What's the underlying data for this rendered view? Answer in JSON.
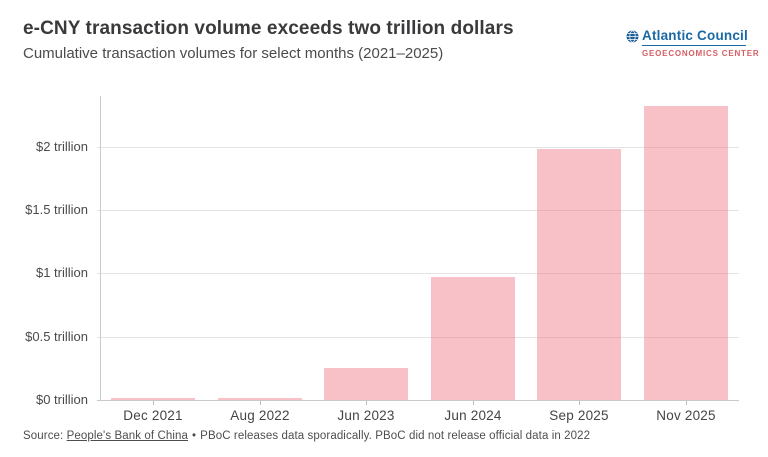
{
  "header": {
    "title": "e-CNY transaction volume exceeds two trillion dollars",
    "subtitle": "Cumulative transaction volumes for select months (2021–2025)",
    "logo": {
      "org": "Atlantic Council",
      "center": "GEOECONOMICS CENTER",
      "icon": "globe-icon",
      "org_color": "#1a69a5",
      "center_color": "#d65f64"
    }
  },
  "chart_data": {
    "type": "bar",
    "title": "e-CNY transaction volume exceeds two trillion dollars",
    "subtitle": "Cumulative transaction volumes for select months (2021–2025)",
    "categories": [
      "Dec 2021",
      "Aug 2022",
      "Jun 2023",
      "Jun 2024",
      "Sep 2025",
      "Nov 2025"
    ],
    "values": [
      0.014,
      0.015,
      0.25,
      0.97,
      1.98,
      2.32
    ],
    "unit": "USD trillions",
    "xlabel": "",
    "ylabel": "",
    "ylim": [
      0,
      2.4
    ],
    "yticks": [
      0,
      0.5,
      1,
      1.5,
      2
    ],
    "ytick_labels": [
      "$0 trillion",
      "$0.5 trillion",
      "$1 trillion",
      "$1.5 trillion",
      "$2 trillion"
    ],
    "grid": true,
    "legend": false,
    "bar_color": "#f8c2c7",
    "bar_color_rgba": "rgba(238,118,130,0.45)",
    "gridline_color": "#e3e3e3",
    "axis_color": "#c9c9c9"
  },
  "footer": {
    "source_prefix": "Source:",
    "source_link": "People's Bank of China",
    "separator": "•",
    "note": "PBoC releases data sporadically. PBoC did not release official data in 2022"
  }
}
